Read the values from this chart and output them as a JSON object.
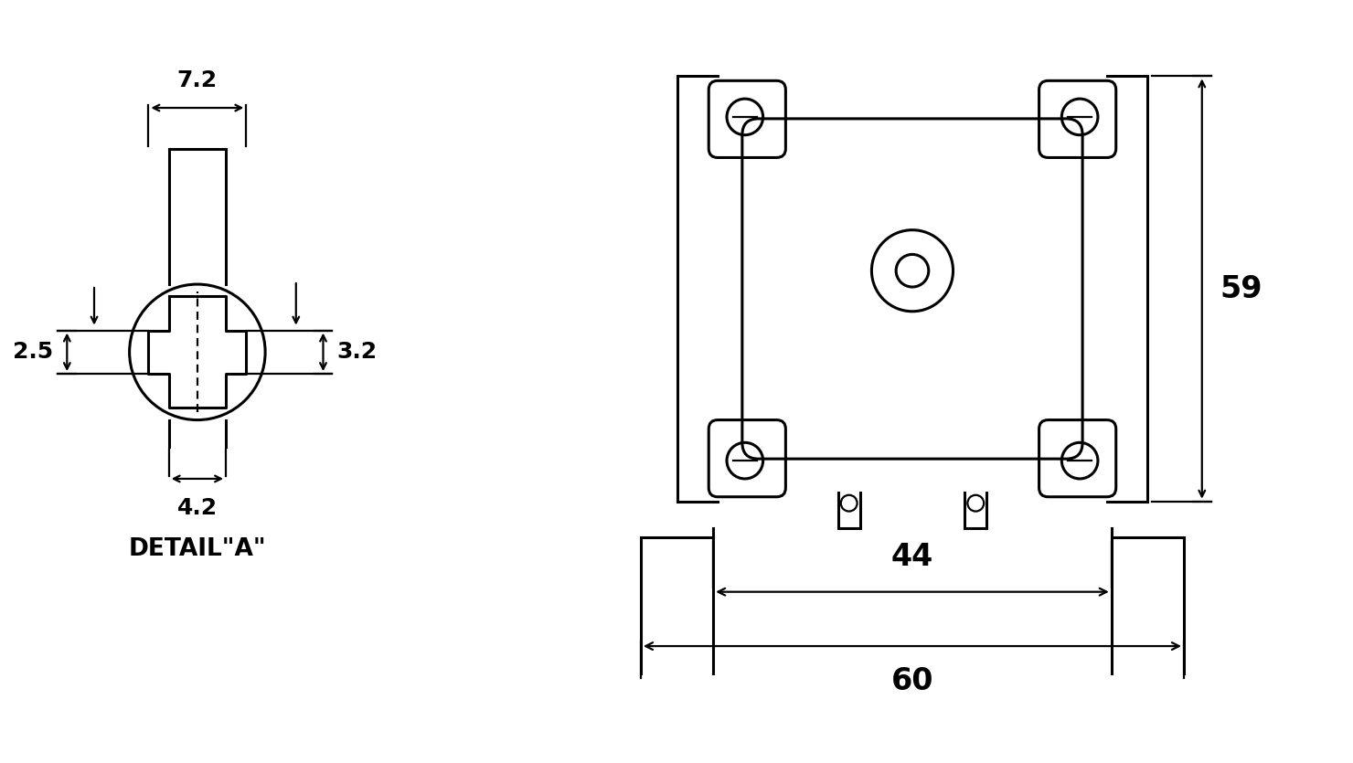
{
  "bg_color": "#ffffff",
  "line_color": "#000000",
  "dim_72": "7.2",
  "dim_32": "3.2",
  "dim_25": "2.5",
  "dim_42": "4.2",
  "dim_44": "44",
  "dim_60": "60",
  "dim_59": "59",
  "detail_label": "DETAIL\"A\"",
  "lw": 2.2,
  "lw_thick": 2.8,
  "lw_thin": 1.6,
  "font_size_dim": 18,
  "font_size_large": 24,
  "font_size_detail": 19
}
